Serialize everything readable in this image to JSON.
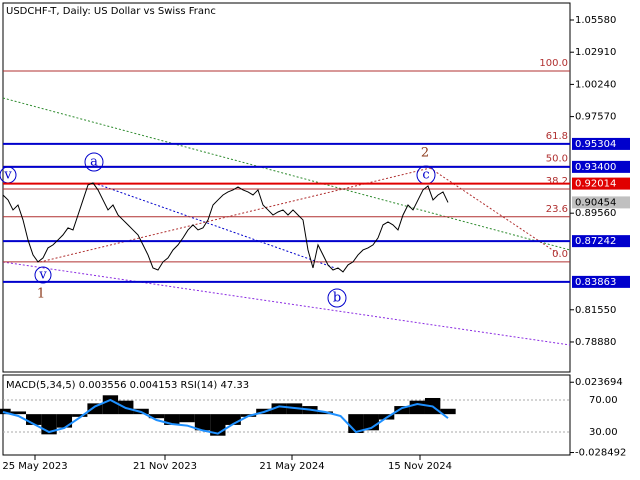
{
  "chart_data": {
    "type": "line",
    "title": "USDCHF-T, Daily:  US Dollar vs Swiss Franc",
    "color": "#000000",
    "xlim": [
      0,
      113.4
    ],
    "xticks": [
      {
        "value": 6.4,
        "label": "25 May 2023"
      },
      {
        "value": 32.4,
        "label": "21 Nov 2023"
      },
      {
        "value": 57.8,
        "label": "21 May 2024"
      },
      {
        "value": 83.4,
        "label": "15 Nov 2024"
      }
    ],
    "ylim": [
      0.7639,
      1.0699
    ],
    "yticks": [
      {
        "value": 1.0558,
        "label": "1.05580"
      },
      {
        "value": 1.0291,
        "label": "1.02910"
      },
      {
        "value": 1.0024,
        "label": "1.00240"
      },
      {
        "value": 0.9757,
        "label": "0.97570"
      },
      {
        "value": 0.8956,
        "label": "0.89560"
      },
      {
        "value": 0.8155,
        "label": "0.81550"
      },
      {
        "value": 0.7888,
        "label": "0.78880"
      }
    ],
    "values": [
      0.9107,
      0.9066,
      0.8983,
      0.9024,
      0.89,
      0.8734,
      0.861,
      0.8552,
      0.8585,
      0.8668,
      0.8693,
      0.8734,
      0.8776,
      0.8834,
      0.8817,
      0.8941,
      0.9066,
      0.919,
      0.9207,
      0.9149,
      0.9066,
      0.8983,
      0.9024,
      0.8941,
      0.89,
      0.8859,
      0.8817,
      0.8776,
      0.8693,
      0.861,
      0.8502,
      0.8485,
      0.8552,
      0.8585,
      0.8651,
      0.8693,
      0.8751,
      0.8817,
      0.8859,
      0.8817,
      0.8834,
      0.89,
      0.9024,
      0.9066,
      0.9107,
      0.9132,
      0.9149,
      0.9174,
      0.9149,
      0.9132,
      0.9107,
      0.9149,
      0.9024,
      0.8983,
      0.8941,
      0.8966,
      0.8983,
      0.8941,
      0.8983,
      0.8941,
      0.89,
      0.8651,
      0.8502,
      0.8693,
      0.861,
      0.8527,
      0.8485,
      0.8502,
      0.8469,
      0.8527,
      0.8552,
      0.861,
      0.8651,
      0.8668,
      0.8693,
      0.8751,
      0.8859,
      0.8883,
      0.8859,
      0.8817,
      0.8941,
      0.9024,
      0.8983,
      0.9066,
      0.9149,
      0.9182,
      0.9066,
      0.9107,
      0.9132,
      0.9045
    ],
    "levels": [
      {
        "value": 0.95304,
        "label": "0.95304",
        "color": "#0000cc"
      },
      {
        "value": 0.934,
        "label": "0.93400",
        "color": "#0000cc"
      },
      {
        "value": 0.92014,
        "label": "0.92014",
        "color": "#e00000"
      },
      {
        "value": 0.90454,
        "label": "0.90454",
        "color": "#c0c0c0"
      },
      {
        "value": 0.87242,
        "label": "0.87242",
        "color": "#0000cc"
      },
      {
        "value": 0.83863,
        "label": "0.83863",
        "color": "#0000cc"
      }
    ],
    "fib_levels": [
      {
        "value": 1.0135,
        "label": "100.0"
      },
      {
        "value": 0.953,
        "label": "61.8"
      },
      {
        "value": 0.9344,
        "label": "50.0"
      },
      {
        "value": 0.9157,
        "label": "38.2"
      },
      {
        "value": 0.8926,
        "label": "23.6"
      },
      {
        "value": 0.8552,
        "label": "0.0"
      }
    ],
    "annotations": [
      "v",
      "a",
      "1",
      "v",
      "b",
      "c",
      "2"
    ],
    "indicator": {
      "title": "MACD(5,34,5) 0.003556 0.004153 RSI(14) 47.33",
      "ylim": [
        -0.03033,
        0.029066
      ],
      "yticks": [
        {
          "value": 0.023694,
          "label": "0.023694"
        },
        {
          "value": -0.028492,
          "label": "-0.028492"
        }
      ],
      "y2lim": [
        1.25,
        101.25
      ],
      "y2ticks": [
        {
          "value": 70,
          "label": "70.00"
        },
        {
          "value": 30,
          "label": "30.00"
        }
      ],
      "macd": [
        0.004,
        0.002,
        -0.008,
        -0.015,
        -0.01,
        -0.002,
        0.008,
        0.014,
        0.01,
        0.004,
        -0.003,
        -0.008,
        -0.006,
        -0.012,
        -0.016,
        -0.008,
        -0.002,
        0.004,
        0.008,
        0.008,
        0.006,
        0.002,
        0.0,
        -0.014,
        -0.012,
        -0.004,
        0.006,
        0.01,
        0.012,
        0.004
      ],
      "rsi": [
        55,
        50,
        40,
        30,
        35,
        48,
        62,
        70,
        60,
        55,
        45,
        40,
        38,
        32,
        28,
        40,
        50,
        55,
        62,
        60,
        58,
        55,
        50,
        30,
        35,
        48,
        60,
        65,
        62,
        47.33
      ],
      "macd_color": "#000000",
      "rsi_color": "#1e90ff"
    }
  }
}
